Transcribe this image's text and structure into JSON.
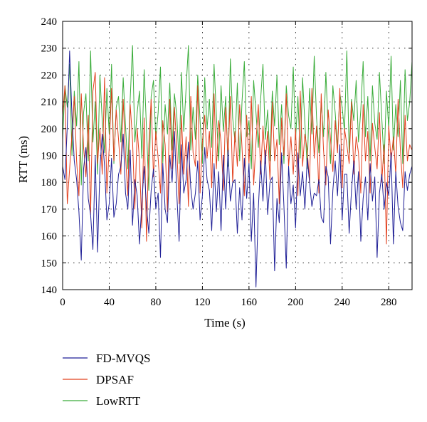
{
  "chart_data": {
    "type": "line",
    "xlabel": "Time (s)",
    "ylabel": "RTT (ms)",
    "xlim": [
      0,
      300
    ],
    "ylim": [
      140,
      240
    ],
    "xticks": [
      0,
      40,
      80,
      120,
      160,
      200,
      240,
      280
    ],
    "yticks": [
      140,
      150,
      160,
      170,
      180,
      190,
      200,
      210,
      220,
      230,
      240
    ],
    "grid": true,
    "legend_position": "bottom-left",
    "series": [
      {
        "name": "FD-MVQS",
        "color": "#1f1f96",
        "x": [
          0,
          2,
          4,
          6,
          8,
          10,
          12,
          14,
          16,
          18,
          20,
          22,
          24,
          26,
          28,
          30,
          32,
          34,
          36,
          38,
          40,
          42,
          44,
          46,
          48,
          50,
          52,
          54,
          56,
          58,
          60,
          62,
          64,
          66,
          68,
          70,
          72,
          74,
          76,
          78,
          80,
          82,
          84,
          86,
          88,
          90,
          92,
          94,
          96,
          98,
          100,
          102,
          104,
          106,
          108,
          110,
          112,
          114,
          116,
          118,
          120,
          122,
          124,
          126,
          128,
          130,
          132,
          134,
          136,
          138,
          140,
          142,
          144,
          146,
          148,
          150,
          152,
          154,
          156,
          158,
          160,
          162,
          164,
          166,
          168,
          170,
          172,
          174,
          176,
          178,
          180,
          182,
          184,
          186,
          188,
          190,
          192,
          194,
          196,
          198,
          200,
          202,
          204,
          206,
          208,
          210,
          212,
          214,
          216,
          218,
          220,
          222,
          224,
          226,
          228,
          230,
          232,
          234,
          236,
          238,
          240,
          242,
          244,
          246,
          248,
          250,
          252,
          254,
          256,
          258,
          260,
          262,
          264,
          266,
          268,
          270,
          272,
          274,
          276,
          278,
          280,
          282,
          284,
          286,
          288,
          290,
          292,
          294,
          296,
          298,
          300
        ],
        "values": [
          186,
          181,
          201,
          229,
          205,
          188,
          181,
          169,
          151,
          185,
          193,
          174,
          168,
          155,
          190,
          154,
          185,
          198,
          186,
          166,
          172,
          189,
          167,
          172,
          183,
          186,
          198,
          176,
          170,
          192,
          164,
          181,
          175,
          157,
          172,
          186,
          171,
          161,
          177,
          185,
          170,
          176,
          152,
          187,
          170,
          165,
          190,
          180,
          199,
          176,
          158,
          194,
          176,
          181,
          195,
          178,
          170,
          176,
          188,
          166,
          175,
          193,
          181,
          177,
          162,
          187,
          169,
          184,
          162,
          190,
          170,
          192,
          173,
          180,
          181,
          161,
          178,
          166,
          189,
          174,
          187,
          158,
          176,
          141,
          170,
          188,
          173,
          192,
          168,
          180,
          182,
          147,
          174,
          165,
          191,
          171,
          148,
          186,
          172,
          179,
          163,
          191,
          175,
          184,
          170,
          189,
          180,
          171,
          176,
          175,
          181,
          167,
          165,
          186,
          182,
          157,
          177,
          188,
          175,
          194,
          166,
          183,
          183,
          161,
          177,
          188,
          170,
          184,
          158,
          174,
          182,
          166,
          187,
          173,
          182,
          152,
          176,
          183,
          170,
          180,
          175,
          191,
          157,
          184,
          171,
          165,
          162,
          184,
          177,
          183,
          186
        ]
      },
      {
        "name": "DPSAF",
        "color": "#e2401e",
        "x": [
          0,
          2,
          4,
          6,
          8,
          10,
          12,
          14,
          16,
          18,
          20,
          22,
          24,
          26,
          28,
          30,
          32,
          34,
          36,
          38,
          40,
          42,
          44,
          46,
          48,
          50,
          52,
          54,
          56,
          58,
          60,
          62,
          64,
          66,
          68,
          70,
          72,
          74,
          76,
          78,
          80,
          82,
          84,
          86,
          88,
          90,
          92,
          94,
          96,
          98,
          100,
          102,
          104,
          106,
          108,
          110,
          112,
          114,
          116,
          118,
          120,
          122,
          124,
          126,
          128,
          130,
          132,
          134,
          136,
          138,
          140,
          142,
          144,
          146,
          148,
          150,
          152,
          154,
          156,
          158,
          160,
          162,
          164,
          166,
          168,
          170,
          172,
          174,
          176,
          178,
          180,
          182,
          184,
          186,
          188,
          190,
          192,
          194,
          196,
          198,
          200,
          202,
          204,
          206,
          208,
          210,
          212,
          214,
          216,
          218,
          220,
          222,
          224,
          226,
          228,
          230,
          232,
          234,
          236,
          238,
          240,
          242,
          244,
          246,
          248,
          250,
          252,
          254,
          256,
          258,
          260,
          262,
          264,
          266,
          268,
          270,
          272,
          274,
          276,
          278,
          280,
          282,
          284,
          286,
          288,
          290,
          292,
          294,
          296,
          298,
          300
        ],
        "values": [
          205,
          216,
          172,
          185,
          198,
          212,
          188,
          175,
          213,
          193,
          182,
          205,
          168,
          214,
          221,
          187,
          200,
          183,
          219,
          176,
          193,
          215,
          188,
          207,
          196,
          183,
          211,
          190,
          175,
          209,
          196,
          170,
          200,
          188,
          163,
          204,
          158,
          194,
          211,
          182,
          199,
          189,
          176,
          203,
          194,
          169,
          211,
          185,
          208,
          193,
          172,
          205,
          183,
          197,
          171,
          212,
          191,
          186,
          216,
          176,
          195,
          205,
          189,
          199,
          178,
          213,
          185,
          203,
          195,
          177,
          208,
          189,
          212,
          180,
          199,
          186,
          209,
          193,
          175,
          205,
          187,
          212,
          179,
          195,
          209,
          183,
          201,
          187,
          199,
          181,
          210,
          188,
          196,
          172,
          204,
          190,
          213,
          186,
          197,
          183,
          200,
          175,
          214,
          186,
          198,
          192,
          180,
          215,
          189,
          201,
          176,
          213,
          192,
          179,
          207,
          196,
          184,
          203,
          191,
          215,
          178,
          200,
          194,
          187,
          210,
          183,
          197,
          191,
          176,
          209,
          188,
          199,
          176,
          202,
          193,
          185,
          206,
          180,
          194,
          157,
          201,
          188,
          197,
          183,
          211,
          192,
          178,
          205,
          188,
          194,
          192
        ]
      },
      {
        "name": "LowRTT",
        "color": "#3aac3a",
        "x": [
          0,
          2,
          4,
          6,
          8,
          10,
          12,
          14,
          16,
          18,
          20,
          22,
          24,
          26,
          28,
          30,
          32,
          34,
          36,
          38,
          40,
          42,
          44,
          46,
          48,
          50,
          52,
          54,
          56,
          58,
          60,
          62,
          64,
          66,
          68,
          70,
          72,
          74,
          76,
          78,
          80,
          82,
          84,
          86,
          88,
          90,
          92,
          94,
          96,
          98,
          100,
          102,
          104,
          106,
          108,
          110,
          112,
          114,
          116,
          118,
          120,
          122,
          124,
          126,
          128,
          130,
          132,
          134,
          136,
          138,
          140,
          142,
          144,
          146,
          148,
          150,
          152,
          154,
          156,
          158,
          160,
          162,
          164,
          166,
          168,
          170,
          172,
          174,
          176,
          178,
          180,
          182,
          184,
          186,
          188,
          190,
          192,
          194,
          196,
          198,
          200,
          202,
          204,
          206,
          208,
          210,
          212,
          214,
          216,
          218,
          220,
          222,
          224,
          226,
          228,
          230,
          232,
          234,
          236,
          238,
          240,
          242,
          244,
          246,
          248,
          250,
          252,
          254,
          256,
          258,
          260,
          262,
          264,
          266,
          268,
          270,
          272,
          274,
          276,
          278,
          280,
          282,
          284,
          286,
          288,
          290,
          292,
          294,
          296,
          298,
          300
        ],
        "values": [
          196,
          216,
          208,
          224,
          190,
          214,
          201,
          225,
          179,
          206,
          213,
          188,
          229,
          195,
          210,
          183,
          220,
          203,
          191,
          215,
          198,
          224,
          187,
          208,
          212,
          195,
          219,
          201,
          185,
          211,
          231,
          195,
          206,
          214,
          189,
          222,
          200,
          177,
          212,
          218,
          196,
          206,
          223,
          187,
          209,
          198,
          217,
          192,
          213,
          205,
          187,
          221,
          199,
          215,
          231,
          192,
          208,
          196,
          220,
          203,
          187,
          219,
          200,
          211,
          193,
          224,
          205,
          188,
          216,
          199,
          212,
          186,
          226,
          204,
          195,
          217,
          188,
          210,
          225,
          197,
          203,
          185,
          218,
          206,
          193,
          211,
          224,
          196,
          207,
          188,
          214,
          201,
          220,
          194,
          209,
          187,
          216,
          205,
          200,
          223,
          196,
          212,
          189,
          219,
          202,
          185,
          215,
          198,
          227,
          204,
          191,
          210,
          197,
          221,
          200,
          187,
          216,
          206,
          193,
          213,
          208,
          199,
          229,
          191,
          211,
          203,
          218,
          195,
          207,
          225,
          197,
          212,
          188,
          216,
          202,
          196,
          221,
          204,
          187,
          214,
          200,
          227,
          192,
          209,
          197,
          218,
          187,
          222,
          203,
          210,
          225
        ]
      }
    ]
  }
}
